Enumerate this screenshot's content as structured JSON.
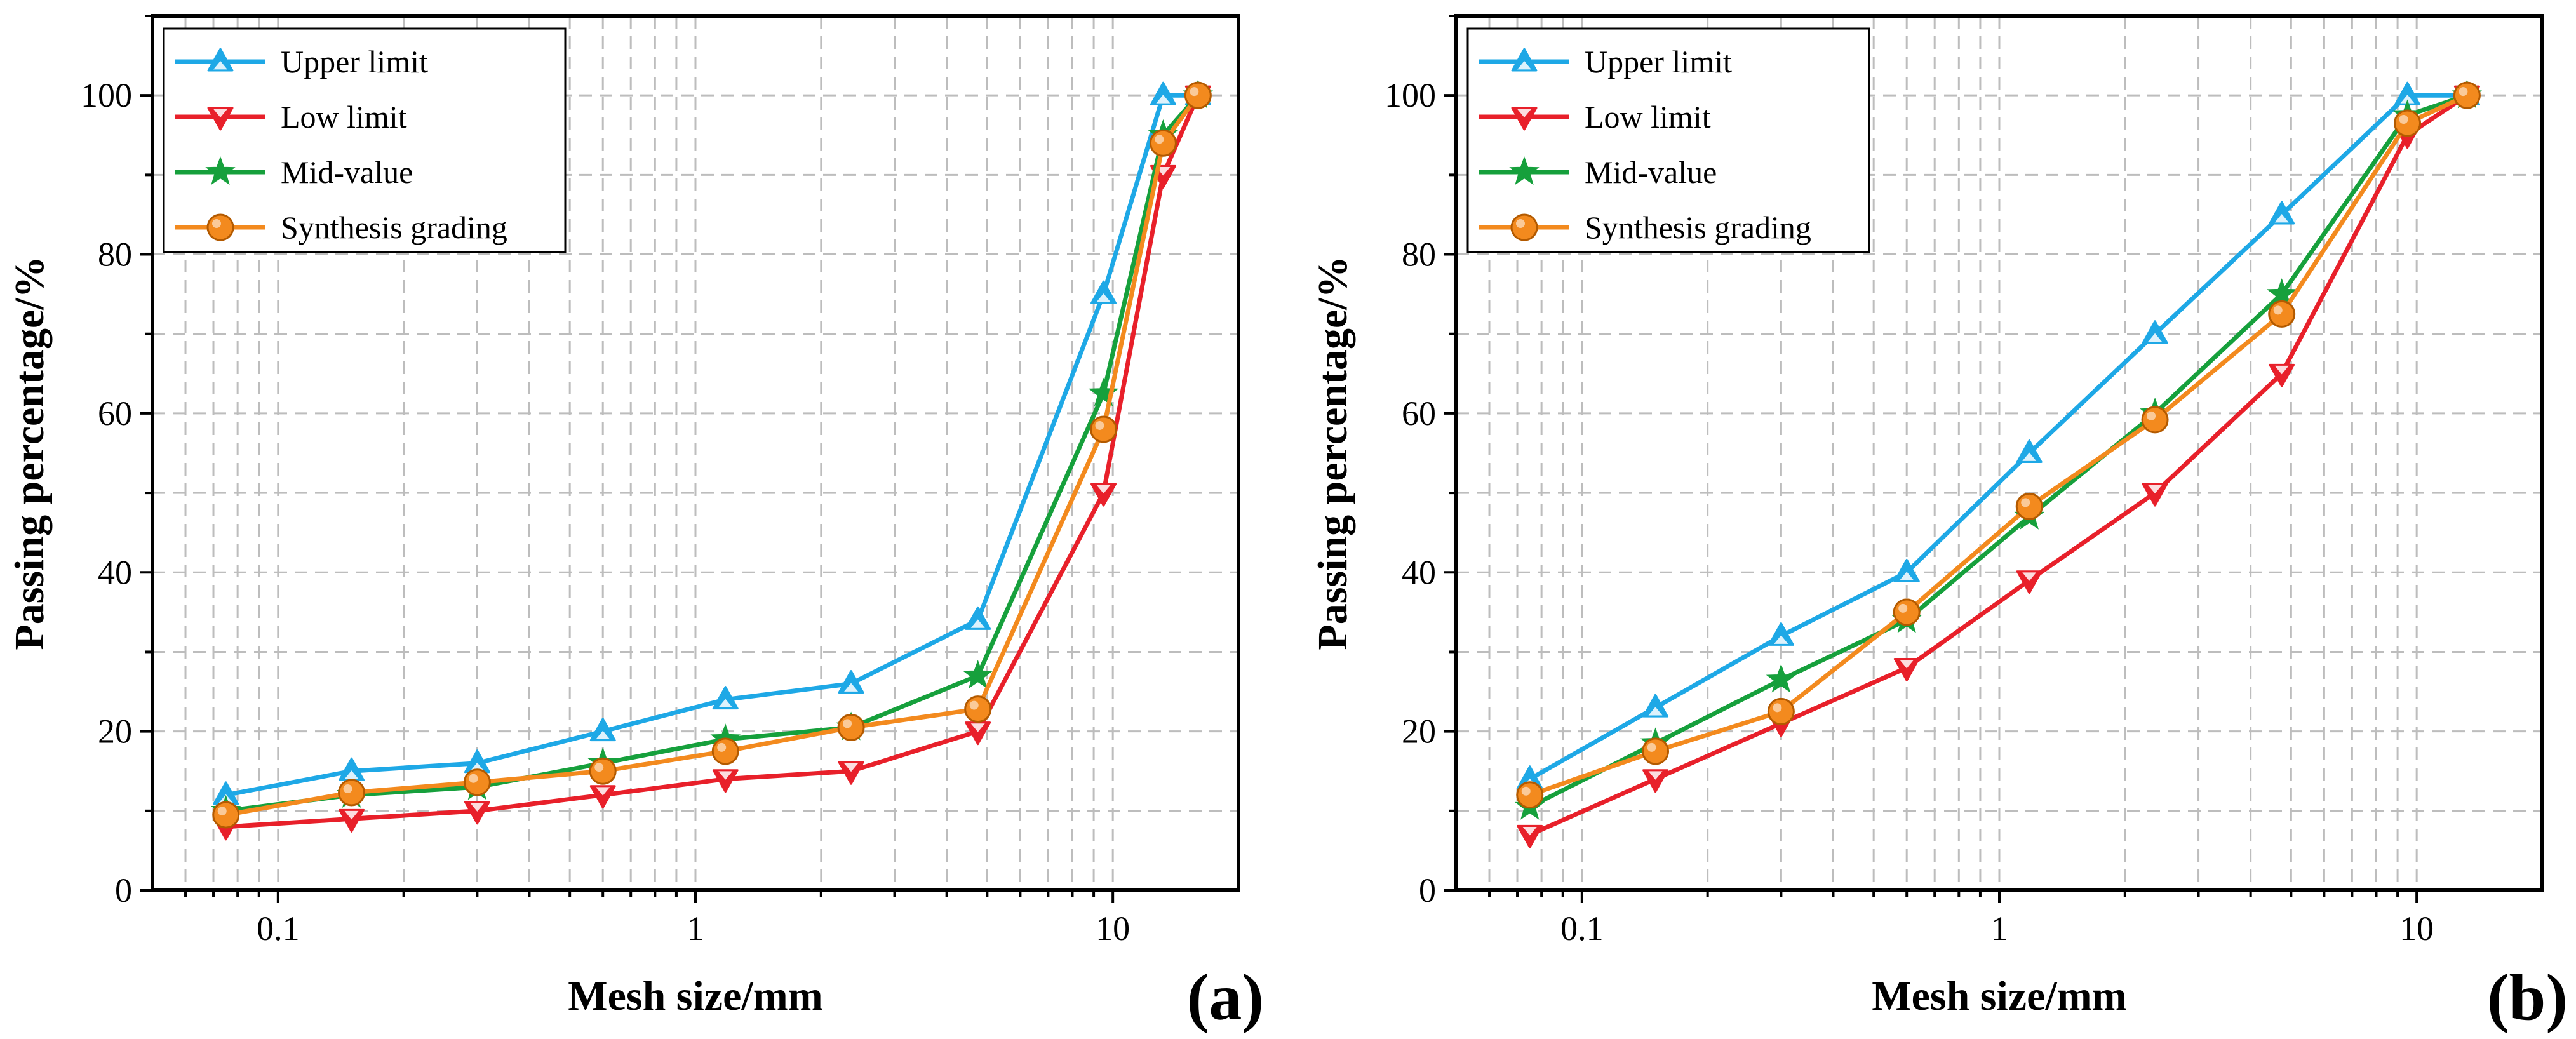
{
  "chart_data": [
    {
      "type": "line",
      "panel_label": "(a)",
      "xlabel": "Mesh size/mm",
      "ylabel": "Passing percentage/%",
      "xscale": "log",
      "xlim": [
        0.05,
        20
      ],
      "ylim": [
        0,
        110
      ],
      "x_ticks": [
        0.1,
        1,
        10
      ],
      "x_tick_labels": [
        "0.1",
        "1",
        "10"
      ],
      "y_ticks": [
        0,
        20,
        40,
        60,
        80,
        100
      ],
      "y_tick_labels": [
        "0",
        "20",
        "40",
        "60",
        "80",
        "100"
      ],
      "grid": true,
      "legend_position": "top-left",
      "x": [
        0.075,
        0.15,
        0.3,
        0.6,
        1.18,
        2.36,
        4.75,
        9.5,
        13.2,
        16
      ],
      "series": [
        {
          "name": "Upper limit",
          "color": "#1ea8e6",
          "marker": "triangle-up",
          "values": [
            12,
            15,
            16,
            20,
            24,
            26,
            34,
            75,
            100,
            100
          ]
        },
        {
          "name": "Low limit",
          "color": "#e8202a",
          "marker": "triangle-down",
          "values": [
            8,
            9,
            10,
            12,
            14,
            15,
            20,
            50,
            90,
            100
          ]
        },
        {
          "name": "Mid-value",
          "color": "#16a03c",
          "marker": "star",
          "values": [
            10,
            12,
            13,
            16,
            19,
            20.5,
            27,
            62.5,
            95,
            100
          ]
        },
        {
          "name": "Synthesis grading",
          "color": "#f38a1e",
          "marker": "circle",
          "values": [
            9.5,
            12.3,
            13.6,
            15,
            17.5,
            20.5,
            22.8,
            58,
            94,
            100
          ]
        }
      ]
    },
    {
      "type": "line",
      "panel_label": "(b)",
      "xlabel": "Mesh size/mm",
      "ylabel": "Passing percentage/%",
      "xscale": "log",
      "xlim": [
        0.05,
        20
      ],
      "ylim": [
        0,
        110
      ],
      "x_ticks": [
        0.1,
        1,
        10
      ],
      "x_tick_labels": [
        "0.1",
        "1",
        "10"
      ],
      "y_ticks": [
        0,
        20,
        40,
        60,
        80,
        100
      ],
      "y_tick_labels": [
        "0",
        "20",
        "40",
        "60",
        "80",
        "100"
      ],
      "grid": true,
      "legend_position": "top-left",
      "x": [
        0.075,
        0.15,
        0.3,
        0.6,
        1.18,
        2.36,
        4.75,
        9.5,
        13.2
      ],
      "series": [
        {
          "name": "Upper limit",
          "color": "#1ea8e6",
          "marker": "triangle-up",
          "values": [
            14,
            23,
            32,
            40,
            55,
            70,
            85,
            100,
            100
          ]
        },
        {
          "name": "Low limit",
          "color": "#e8202a",
          "marker": "triangle-down",
          "values": [
            7,
            14,
            21,
            28,
            39,
            50,
            65,
            95,
            100
          ]
        },
        {
          "name": "Mid-value",
          "color": "#16a03c",
          "marker": "star",
          "values": [
            10.5,
            18.5,
            26.5,
            34,
            47,
            60,
            75,
            97.5,
            100
          ]
        },
        {
          "name": "Synthesis grading",
          "color": "#f38a1e",
          "marker": "circle",
          "values": [
            12,
            17.5,
            22.5,
            35,
            48.3,
            59.2,
            72.5,
            96.5,
            100
          ]
        }
      ]
    }
  ]
}
